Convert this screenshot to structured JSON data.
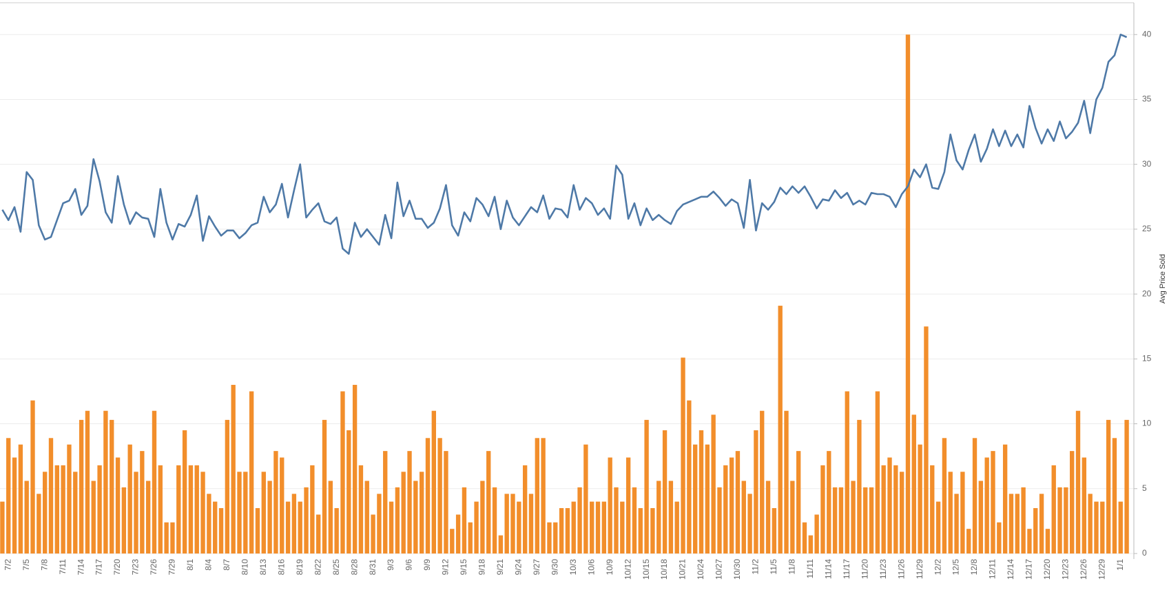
{
  "chart_data": {
    "type": "bar_line",
    "y_label": "Avg Price Sold",
    "categories": [
      null,
      "7/2",
      null,
      null,
      "7/5",
      null,
      null,
      "7/8",
      null,
      null,
      "7/11",
      null,
      null,
      "7/14",
      null,
      null,
      "7/17",
      null,
      null,
      "7/20",
      null,
      null,
      "7/23",
      null,
      null,
      "7/26",
      null,
      null,
      "7/29",
      null,
      null,
      "8/1",
      null,
      null,
      "8/4",
      null,
      null,
      "8/7",
      null,
      null,
      "8/10",
      null,
      null,
      "8/13",
      null,
      null,
      "8/16",
      null,
      null,
      "8/19",
      null,
      null,
      "8/22",
      null,
      null,
      "8/25",
      null,
      null,
      "8/28",
      null,
      null,
      "8/31",
      null,
      null,
      "9/3",
      null,
      null,
      "9/6",
      null,
      null,
      "9/9",
      null,
      null,
      "9/12",
      null,
      null,
      "9/15",
      null,
      null,
      "9/18",
      null,
      null,
      "9/21",
      null,
      null,
      "9/24",
      null,
      null,
      "9/27",
      null,
      null,
      "9/30",
      null,
      null,
      "10/3",
      null,
      null,
      "10/6",
      null,
      null,
      "10/9",
      null,
      null,
      "10/12",
      null,
      null,
      "10/15",
      null,
      null,
      "10/18",
      null,
      null,
      "10/21",
      null,
      null,
      "10/24",
      null,
      null,
      "10/27",
      null,
      null,
      "10/30",
      null,
      null,
      "11/2",
      null,
      null,
      "11/5",
      null,
      null,
      "11/8",
      null,
      null,
      "11/11",
      null,
      null,
      "11/14",
      null,
      null,
      "11/17",
      null,
      null,
      "11/20",
      null,
      null,
      "11/23",
      null,
      null,
      "11/26",
      null,
      null,
      "11/29",
      null,
      null,
      "12/2",
      null,
      null,
      "12/5",
      null,
      null,
      "12/8",
      null,
      null,
      "12/11",
      null,
      null,
      "12/14",
      null,
      null,
      "12/17",
      null,
      null,
      "12/20",
      null,
      null,
      "12/23",
      null,
      null,
      "12/26",
      null,
      null,
      "12/29",
      null,
      null,
      "1/1",
      null
    ],
    "series": [
      {
        "type": "bar",
        "color": "#f28e2b",
        "values": [
          4.0,
          8.9,
          7.4,
          8.4,
          5.6,
          11.8,
          4.6,
          6.3,
          8.9,
          6.8,
          6.8,
          8.4,
          6.3,
          10.3,
          11.0,
          5.6,
          6.8,
          11.0,
          10.3,
          7.4,
          5.1,
          8.4,
          6.3,
          7.9,
          5.6,
          11.0,
          6.8,
          2.4,
          2.4,
          6.8,
          9.5,
          6.8,
          6.8,
          6.3,
          4.6,
          4.0,
          3.5,
          10.3,
          13.0,
          6.3,
          6.3,
          12.5,
          3.5,
          6.3,
          5.6,
          7.9,
          7.4,
          4.0,
          4.6,
          4.0,
          5.1,
          6.8,
          3.0,
          10.3,
          5.6,
          3.5,
          12.5,
          9.5,
          13.0,
          6.8,
          5.6,
          3.0,
          4.6,
          7.9,
          4.0,
          5.1,
          6.3,
          7.9,
          5.6,
          6.3,
          8.9,
          11.0,
          8.9,
          7.9,
          1.9,
          3.0,
          5.1,
          2.4,
          4.0,
          5.6,
          7.9,
          5.1,
          1.4,
          4.6,
          4.6,
          4.0,
          6.8,
          4.6,
          8.9,
          8.9,
          2.4,
          2.4,
          3.5,
          3.5,
          4.0,
          5.1,
          8.4,
          4.0,
          4.0,
          4.0,
          7.4,
          5.1,
          4.0,
          7.4,
          5.1,
          3.5,
          10.3,
          3.5,
          5.6,
          9.5,
          5.6,
          4.0,
          15.1,
          11.8,
          8.4,
          9.5,
          8.4,
          10.7,
          5.1,
          6.8,
          7.4,
          7.9,
          5.6,
          4.6,
          9.5,
          11.0,
          5.6,
          3.5,
          19.1,
          11.0,
          5.6,
          7.9,
          2.4,
          1.4,
          3.0,
          6.8,
          7.9,
          5.1,
          5.1,
          12.5,
          5.6,
          10.3,
          5.1,
          5.1,
          12.5,
          6.8,
          7.4,
          6.8,
          6.3,
          40.0,
          10.7,
          8.4,
          17.5,
          6.8,
          4.0,
          8.9,
          6.3,
          4.6,
          6.3,
          1.9,
          8.9,
          5.6,
          7.4,
          7.9,
          2.4,
          8.4,
          4.6,
          4.6,
          5.1,
          1.9,
          3.5,
          4.6,
          1.9,
          6.8,
          5.1,
          5.1,
          7.9,
          11.0,
          7.4,
          4.6,
          4.0,
          4.0,
          10.3,
          8.9,
          4.0,
          10.3
        ]
      },
      {
        "type": "line",
        "color": "#4e79a7",
        "values": [
          26.5,
          25.7,
          26.7,
          24.8,
          29.4,
          28.8,
          25.3,
          24.2,
          24.4,
          25.7,
          27.0,
          27.2,
          28.1,
          26.1,
          26.8,
          30.4,
          28.7,
          26.3,
          25.5,
          29.1,
          26.9,
          25.4,
          26.3,
          25.9,
          25.8,
          24.4,
          28.1,
          25.5,
          24.2,
          25.4,
          25.2,
          26.1,
          27.6,
          24.1,
          26.0,
          25.2,
          24.5,
          24.9,
          24.9,
          24.3,
          24.7,
          25.3,
          25.5,
          27.5,
          26.3,
          26.9,
          28.5,
          25.9,
          28.0,
          30.0,
          25.9,
          26.5,
          27.0,
          25.6,
          25.4,
          25.9,
          23.5,
          23.1,
          25.5,
          24.4,
          25.0,
          24.4,
          23.8,
          26.1,
          24.3,
          28.6,
          26.0,
          27.2,
          25.8,
          25.8,
          25.1,
          25.5,
          26.6,
          28.4,
          25.3,
          24.5,
          26.3,
          25.6,
          27.4,
          26.9,
          26.0,
          27.5,
          25.0,
          27.2,
          25.9,
          25.3,
          26.0,
          26.7,
          26.3,
          27.6,
          25.8,
          26.6,
          26.5,
          25.9,
          28.4,
          26.5,
          27.4,
          27.0,
          26.1,
          26.6,
          25.8,
          29.9,
          29.2,
          25.8,
          27.0,
          25.3,
          26.6,
          25.7,
          26.1,
          25.7,
          25.4,
          26.4,
          26.9,
          27.1,
          27.3,
          27.5,
          27.5,
          27.9,
          27.4,
          26.8,
          27.3,
          27.0,
          25.1,
          28.8,
          24.9,
          27.0,
          26.5,
          27.1,
          28.2,
          27.7,
          28.3,
          27.8,
          28.3,
          27.5,
          26.6,
          27.3,
          27.2,
          28.0,
          27.4,
          27.8,
          26.9,
          27.2,
          26.9,
          27.8,
          27.7,
          27.7,
          27.5,
          26.7,
          27.7,
          28.3,
          29.6,
          29.0,
          30.0,
          28.2,
          28.1,
          29.4,
          32.3,
          30.3,
          29.6,
          31.1,
          32.3,
          30.2,
          31.2,
          32.7,
          31.4,
          32.6,
          31.4,
          32.3,
          31.3,
          34.5,
          32.8,
          31.6,
          32.7,
          31.8,
          33.3,
          32.0,
          32.5,
          33.2,
          34.9,
          32.4,
          35.0,
          35.9,
          37.9,
          38.4,
          40.0,
          39.8
        ]
      }
    ],
    "ylim": [
      0,
      42.4
    ],
    "yticks": [
      0,
      5,
      10,
      15,
      20,
      25,
      30,
      35,
      40
    ],
    "grid": true
  }
}
